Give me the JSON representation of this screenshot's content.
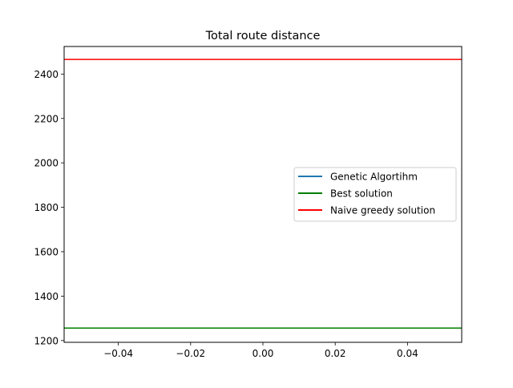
{
  "chart_data": {
    "type": "line",
    "title": "Total route distance",
    "xlabel": "",
    "ylabel": "",
    "xlim": [
      -0.055,
      0.055
    ],
    "ylim": [
      1192,
      2524
    ],
    "x_ticks": [
      -0.04,
      -0.02,
      0.0,
      0.02,
      0.04
    ],
    "x_tick_labels": [
      "−0.04",
      "−0.02",
      "0.00",
      "0.02",
      "0.04"
    ],
    "y_ticks": [
      1200,
      1400,
      1600,
      1800,
      2000,
      2200,
      2400
    ],
    "y_tick_labels": [
      "1200",
      "1400",
      "1600",
      "1800",
      "2000",
      "2200",
      "2400"
    ],
    "grid": false,
    "legend_position": "center-right",
    "series": [
      {
        "name": "Genetic Algortihm",
        "color": "#1f77b4",
        "kind": "line",
        "x": [
          0
        ],
        "y": [
          1256
        ]
      },
      {
        "name": "Best solution",
        "color": "#008000",
        "kind": "hline",
        "y": 1256
      },
      {
        "name": "Naive greedy solution",
        "color": "#ff0000",
        "kind": "hline",
        "y": 2466
      }
    ]
  }
}
